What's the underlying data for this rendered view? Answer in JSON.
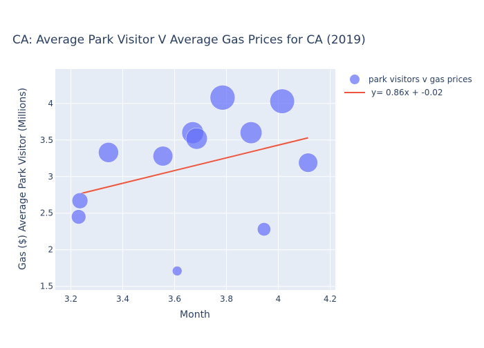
{
  "chart_data": {
    "type": "scatter",
    "title": "CA: Average Park Visitor V Average Gas Prices for CA (2019)",
    "xlabel": "Month",
    "ylabel": "Gas ($) Average Park Visitor (Millions)",
    "xlim": [
      3.14,
      4.22
    ],
    "ylim": [
      1.45,
      4.47
    ],
    "xticks": [
      3.2,
      3.4,
      3.6,
      3.8,
      4,
      4.2
    ],
    "xtick_labels": [
      "3.2",
      "3.4",
      "3.6",
      "3.8",
      "4",
      "4.2"
    ],
    "yticks": [
      1.5,
      2,
      2.5,
      3,
      3.5,
      4
    ],
    "ytick_labels": [
      "1.5",
      "2",
      "2.5",
      "3",
      "3.5",
      "4"
    ],
    "grid": true,
    "legend_position": "top-right",
    "series": [
      {
        "name": "park visitors v gas prices",
        "type": "scatter",
        "color": "#636efa",
        "x": [
          3.23,
          3.235,
          3.345,
          3.555,
          3.61,
          3.67,
          3.685,
          3.785,
          3.895,
          3.945,
          4.015,
          4.115
        ],
        "y": [
          2.45,
          2.67,
          3.33,
          3.28,
          1.71,
          3.6,
          3.52,
          4.08,
          3.6,
          2.28,
          4.03,
          3.19
        ],
        "marker_size": [
          2.45,
          2.67,
          3.33,
          3.28,
          1.71,
          3.6,
          3.52,
          4.08,
          3.6,
          2.28,
          4.03,
          3.19
        ]
      },
      {
        "name": "y= 0.86x + -0.02",
        "type": "line",
        "color": "#ef553b",
        "x": [
          3.24,
          4.115
        ],
        "y": [
          2.77,
          3.53
        ]
      }
    ]
  }
}
